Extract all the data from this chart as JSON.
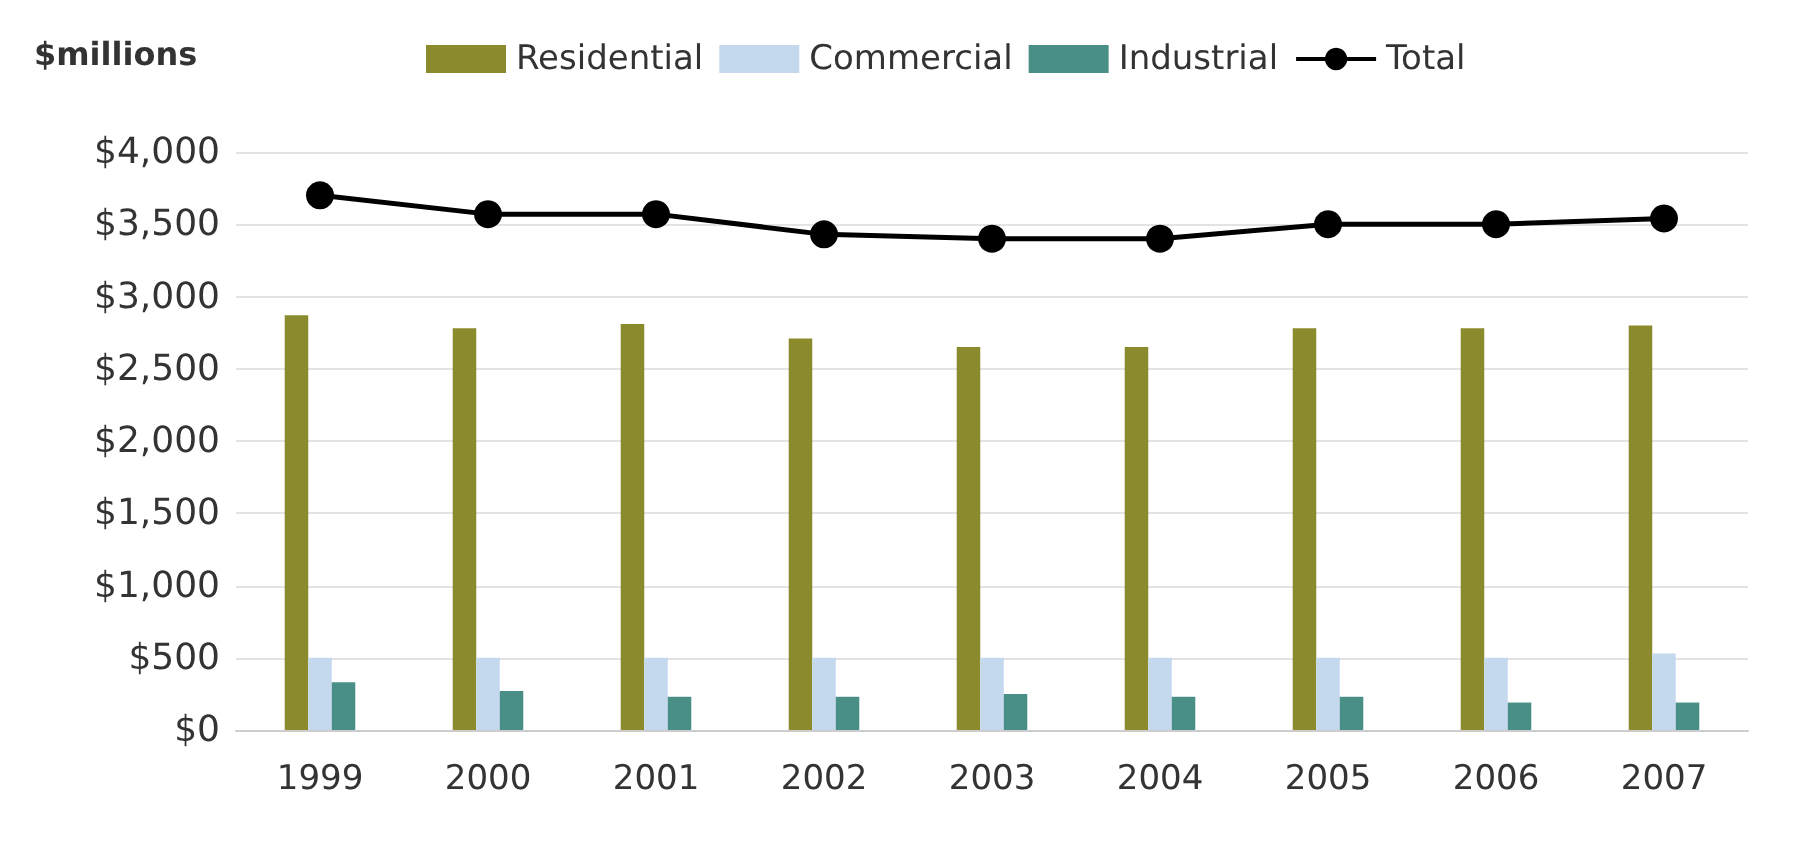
{
  "chart_data": {
    "type": "bar",
    "ylabel": "$millions",
    "categories": [
      "1999",
      "2000",
      "2001",
      "2002",
      "2003",
      "2004",
      "2005",
      "2006",
      "2007"
    ],
    "series": [
      {
        "name": "Residential",
        "color": "#8b8b2e",
        "values": [
          2870,
          2780,
          2810,
          2710,
          2650,
          2650,
          2780,
          2780,
          2800
        ]
      },
      {
        "name": "Commercial",
        "color": "#c5d9ee",
        "values": [
          500,
          500,
          500,
          500,
          500,
          500,
          500,
          500,
          530
        ]
      },
      {
        "name": "Industrial",
        "color": "#4a8f87",
        "values": [
          330,
          270,
          230,
          230,
          250,
          230,
          230,
          190,
          190
        ]
      },
      {
        "name": "Total",
        "type": "line",
        "color": "#000000",
        "values": [
          3700,
          3570,
          3570,
          3430,
          3400,
          3400,
          3500,
          3500,
          3540
        ]
      }
    ],
    "ylim": [
      0,
      4000
    ],
    "yticks": [
      {
        "value": 0,
        "label": "$0"
      },
      {
        "value": 500,
        "label": "$500"
      },
      {
        "value": 1000,
        "label": "$1,000"
      },
      {
        "value": 1500,
        "label": "$1,500"
      },
      {
        "value": 2000,
        "label": "$2,000"
      },
      {
        "value": 2500,
        "label": "$2,500"
      },
      {
        "value": 3000,
        "label": "$3,000"
      },
      {
        "value": 3500,
        "label": "$3,500"
      },
      {
        "value": 4000,
        "label": "$4,000"
      }
    ],
    "grid": "y",
    "legend": "top",
    "marker": "circle"
  }
}
